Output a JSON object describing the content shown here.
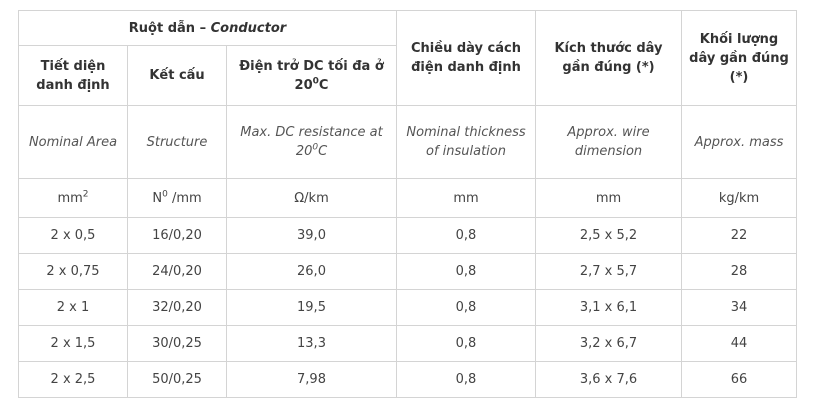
{
  "header": {
    "group": [
      "Ruột dẫn – ",
      {
        "italic": "Conductor"
      }
    ],
    "columns": [
      "Tiết diện danh định",
      "Kết cấu",
      [
        "Điện trở DC tối đa ở 20",
        {
          "sup": "0"
        },
        "C"
      ],
      "Chiều dày cách điện danh định",
      "Kích thước dây gần đúng (*)",
      "Khối lượng dây gần đúng (*)"
    ]
  },
  "english": [
    "Nominal Area",
    "Structure",
    [
      "Max. DC resistance at 20",
      {
        "sup": "0"
      },
      "C"
    ],
    "Nominal thickness of insulation",
    "Approx. wire dimension",
    "Approx. mass"
  ],
  "units": [
    [
      "mm",
      {
        "sup": "2"
      }
    ],
    [
      "N",
      {
        "sup": "0"
      },
      " /mm"
    ],
    "Ω/km",
    "mm",
    "mm",
    "kg/km"
  ],
  "rows": [
    [
      "2 x 0,5",
      "16/0,20",
      "39,0",
      "0,8",
      "2,5 x 5,2",
      "22"
    ],
    [
      "2 x 0,75",
      "24/0,20",
      "26,0",
      "0,8",
      "2,7 x 5,7",
      "28"
    ],
    [
      "2 x 1",
      "32/0,20",
      "19,5",
      "0,8",
      "3,1 x 6,1",
      "34"
    ],
    [
      "2 x 1,5",
      "30/0,25",
      "13,3",
      "0,8",
      "3,2 x 6,7",
      "44"
    ],
    [
      "2 x 2,5",
      "50/0,25",
      "7,98",
      "0,8",
      "3,6 x 7,6",
      "66"
    ]
  ]
}
